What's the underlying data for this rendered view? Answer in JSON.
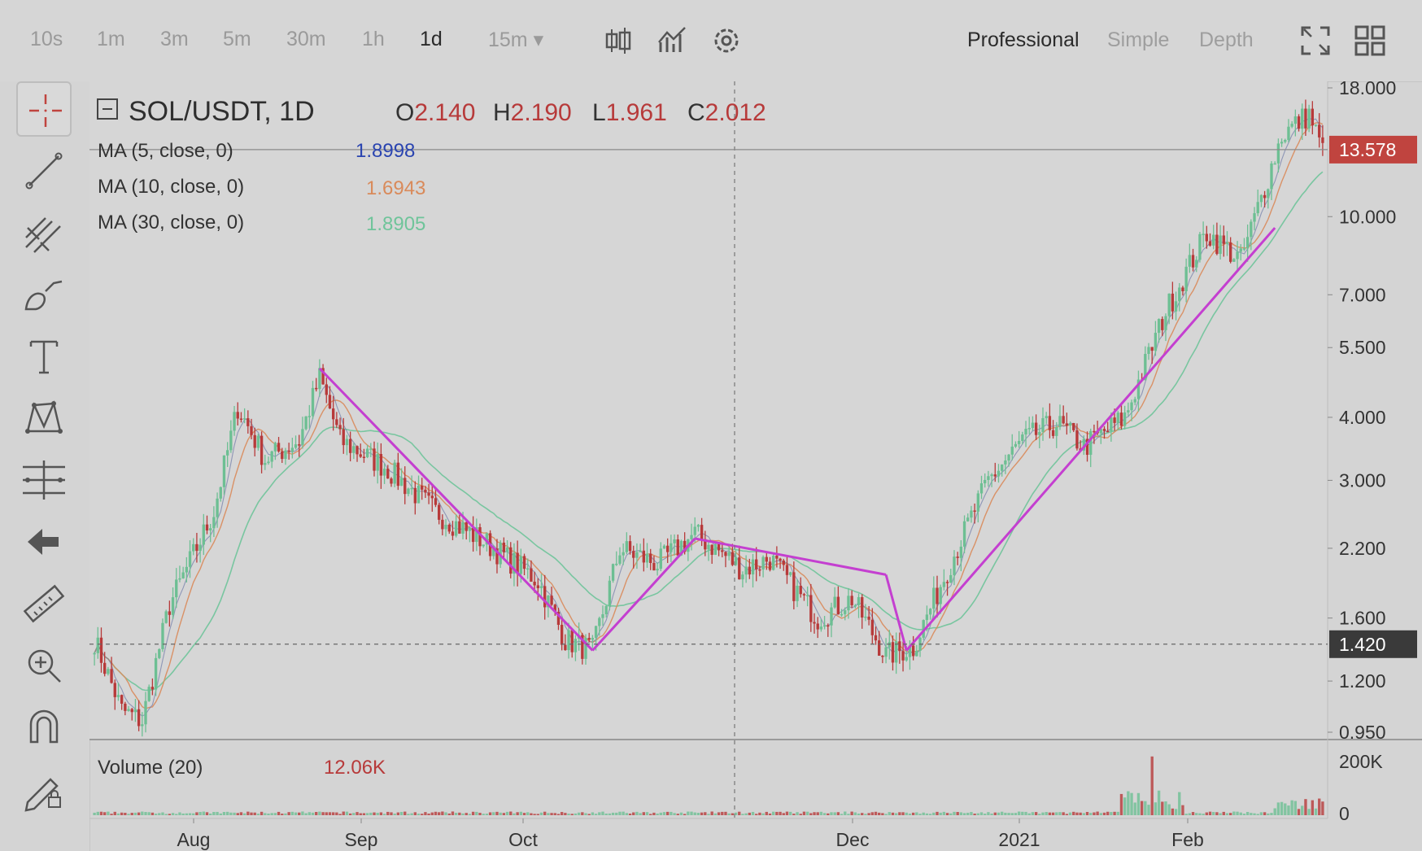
{
  "toolbar": {
    "timeframes": [
      "10s",
      "1m",
      "3m",
      "5m",
      "30m",
      "1h",
      "1d",
      "15m ▾"
    ],
    "active_timeframe": "1d",
    "modes": [
      "Professional",
      "Simple",
      "Depth"
    ],
    "active_mode": "Professional",
    "icons": [
      "candlestick-type-icon",
      "indicators-icon",
      "settings-icon",
      "fullscreen-icon",
      "grid-layout-icon"
    ]
  },
  "tools": [
    "crosshair-icon",
    "trend-line-icon",
    "pitchfork-icon",
    "brush-icon",
    "text-icon",
    "pattern-icon",
    "measure-icon",
    "back-arrow-icon",
    "ruler-icon",
    "zoom-in-icon",
    "magnet-icon",
    "lock-pencil-icon"
  ],
  "chart_data": {
    "type": "candlestick",
    "symbol": "SOL/USDT, 1D",
    "ohlc": {
      "o_label": "O",
      "o": "2.140",
      "h_label": "H",
      "h": "2.190",
      "l_label": "L",
      "l": "1.961",
      "c_label": "C",
      "c": "2.012"
    },
    "indicators": [
      {
        "label": "MA (5, close, 0)",
        "value": "1.8998",
        "color": "#2a44b0"
      },
      {
        "label": "MA (10, close, 0)",
        "value": "1.6943",
        "color": "#d98a5a"
      },
      {
        "label": "MA (30, close, 0)",
        "value": "1.8905",
        "color": "#6fc49a"
      }
    ],
    "y_axis_ticks": [
      "18.000",
      "10.000",
      "7.000",
      "5.500",
      "4.000",
      "3.000",
      "2.200",
      "1.600",
      "1.200",
      "0.950"
    ],
    "y_tick_values": [
      18,
      10,
      7,
      5.5,
      4,
      3,
      2.2,
      1.6,
      1.2,
      0.95
    ],
    "y_scale": "log",
    "x_axis_ticks": [
      "Aug",
      "Sep",
      "Oct",
      "Dec",
      "2021",
      "Feb"
    ],
    "last_price": "13.578",
    "crosshair_price": "1.420",
    "volume": {
      "label": "Volume (20)",
      "value": "12.06K",
      "axis_ticks": [
        "200K",
        "0"
      ]
    },
    "trend_lines": [
      {
        "from": 5.0,
        "to": 1.38
      },
      {
        "from": 1.38,
        "to": 2.3
      },
      {
        "from": 2.3,
        "to": 1.95
      },
      {
        "from": 1.95,
        "to": 1.38
      },
      {
        "from": 1.38,
        "to": 9.5
      }
    ],
    "colors": {
      "up": "#6dbf93",
      "down": "#b73a3a",
      "trend": "#c43fd0",
      "last_price_bg": "#c0443f"
    }
  }
}
